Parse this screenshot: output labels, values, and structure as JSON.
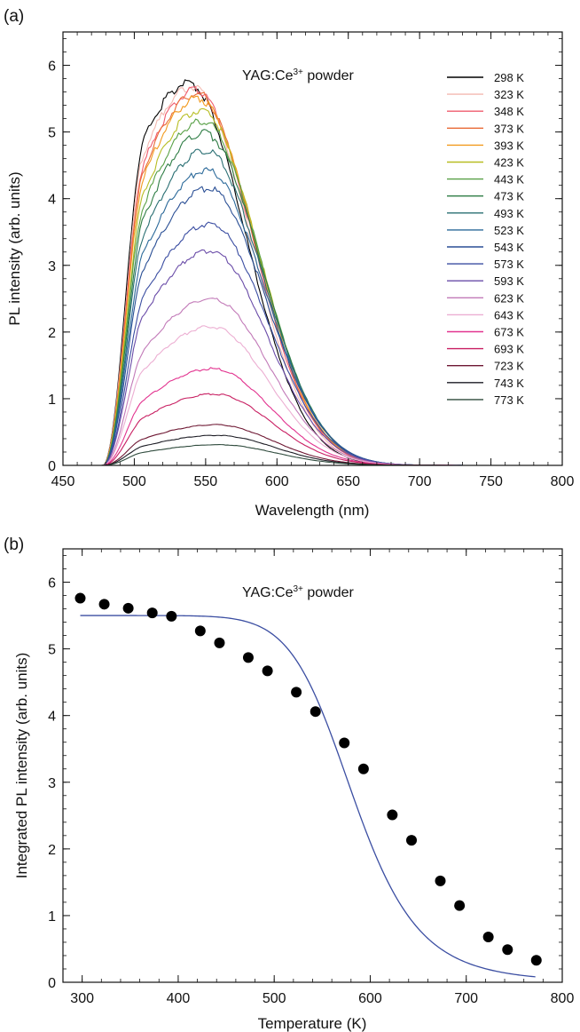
{
  "chart_data": [
    {
      "panel": "(a)",
      "type": "line",
      "annotation": {
        "main": "YAG:Ce",
        "sup": "3+",
        "rest": " powder"
      },
      "xlabel": "Wavelength (nm)",
      "ylabel": "PL intensity (arb. units)",
      "xlim": [
        450,
        800
      ],
      "ylim": [
        0,
        6.5
      ],
      "xticks": [
        450,
        500,
        550,
        600,
        650,
        700,
        750,
        800
      ],
      "yticks": [
        0,
        1,
        2,
        3,
        4,
        5,
        6
      ],
      "legend_position": "top-right",
      "series": [
        {
          "name": "298 K",
          "color": "#000000",
          "peak_x": 538,
          "peak_y": 5.73
        },
        {
          "name": "323 K",
          "color": "#f4b9b0",
          "peak_x": 541,
          "peak_y": 5.68
        },
        {
          "name": "348 K",
          "color": "#ef5c6e",
          "peak_x": 543,
          "peak_y": 5.63
        },
        {
          "name": "373 K",
          "color": "#e96a36",
          "peak_x": 544,
          "peak_y": 5.57
        },
        {
          "name": "393 K",
          "color": "#f29a1e",
          "peak_x": 545,
          "peak_y": 5.5
        },
        {
          "name": "423 K",
          "color": "#b7bd22",
          "peak_x": 547,
          "peak_y": 5.33
        },
        {
          "name": "443 K",
          "color": "#58a046",
          "peak_x": 548,
          "peak_y": 5.17
        },
        {
          "name": "473 K",
          "color": "#2f7d45",
          "peak_x": 549,
          "peak_y": 4.98
        },
        {
          "name": "493 K",
          "color": "#2a6f73",
          "peak_x": 550,
          "peak_y": 4.72
        },
        {
          "name": "523 K",
          "color": "#2c6a9a",
          "peak_x": 551,
          "peak_y": 4.42
        },
        {
          "name": "543 K",
          "color": "#2a4f95",
          "peak_x": 552,
          "peak_y": 4.15
        },
        {
          "name": "573 K",
          "color": "#3b4ea2",
          "peak_x": 553,
          "peak_y": 3.62
        },
        {
          "name": "593 K",
          "color": "#6a4ca8",
          "peak_x": 553,
          "peak_y": 3.22
        },
        {
          "name": "623 K",
          "color": "#c27ab8",
          "peak_x": 554,
          "peak_y": 2.5
        },
        {
          "name": "643 K",
          "color": "#ecaed2",
          "peak_x": 554,
          "peak_y": 2.08
        },
        {
          "name": "673 K",
          "color": "#e2338f",
          "peak_x": 555,
          "peak_y": 1.45
        },
        {
          "name": "693 K",
          "color": "#c81f62",
          "peak_x": 556,
          "peak_y": 1.07
        },
        {
          "name": "723 K",
          "color": "#6e1833",
          "peak_x": 557,
          "peak_y": 0.61
        },
        {
          "name": "743 K",
          "color": "#1c1c24",
          "peak_x": 558,
          "peak_y": 0.45
        },
        {
          "name": "773 K",
          "color": "#2e4a3c",
          "peak_x": 559,
          "peak_y": 0.31
        }
      ]
    },
    {
      "panel": "(b)",
      "type": "scatter",
      "annotation": {
        "main": "YAG:Ce",
        "sup": "3+",
        "rest": " powder"
      },
      "xlabel": "Temperature (K)",
      "ylabel": "Integrated PL intensity (arb. units)",
      "xlim": [
        280,
        800
      ],
      "ylim": [
        0,
        6.5
      ],
      "xticks": [
        300,
        400,
        500,
        600,
        700,
        800
      ],
      "yticks": [
        0,
        1,
        2,
        3,
        4,
        5,
        6
      ],
      "marker_color": "#000000",
      "fit_color": "#3b4ea2",
      "x": [
        298,
        323,
        348,
        373,
        393,
        423,
        443,
        473,
        493,
        523,
        543,
        573,
        593,
        623,
        643,
        673,
        693,
        723,
        743,
        773
      ],
      "y": [
        5.76,
        5.67,
        5.61,
        5.54,
        5.49,
        5.27,
        5.09,
        4.87,
        4.67,
        4.35,
        4.06,
        3.59,
        3.2,
        2.51,
        2.13,
        1.52,
        1.15,
        0.68,
        0.49,
        0.33
      ],
      "fit": {
        "x_range": [
          298,
          773
        ],
        "I0": 5.5,
        "C": 28000000,
        "Ea_K": 10000
      }
    }
  ]
}
